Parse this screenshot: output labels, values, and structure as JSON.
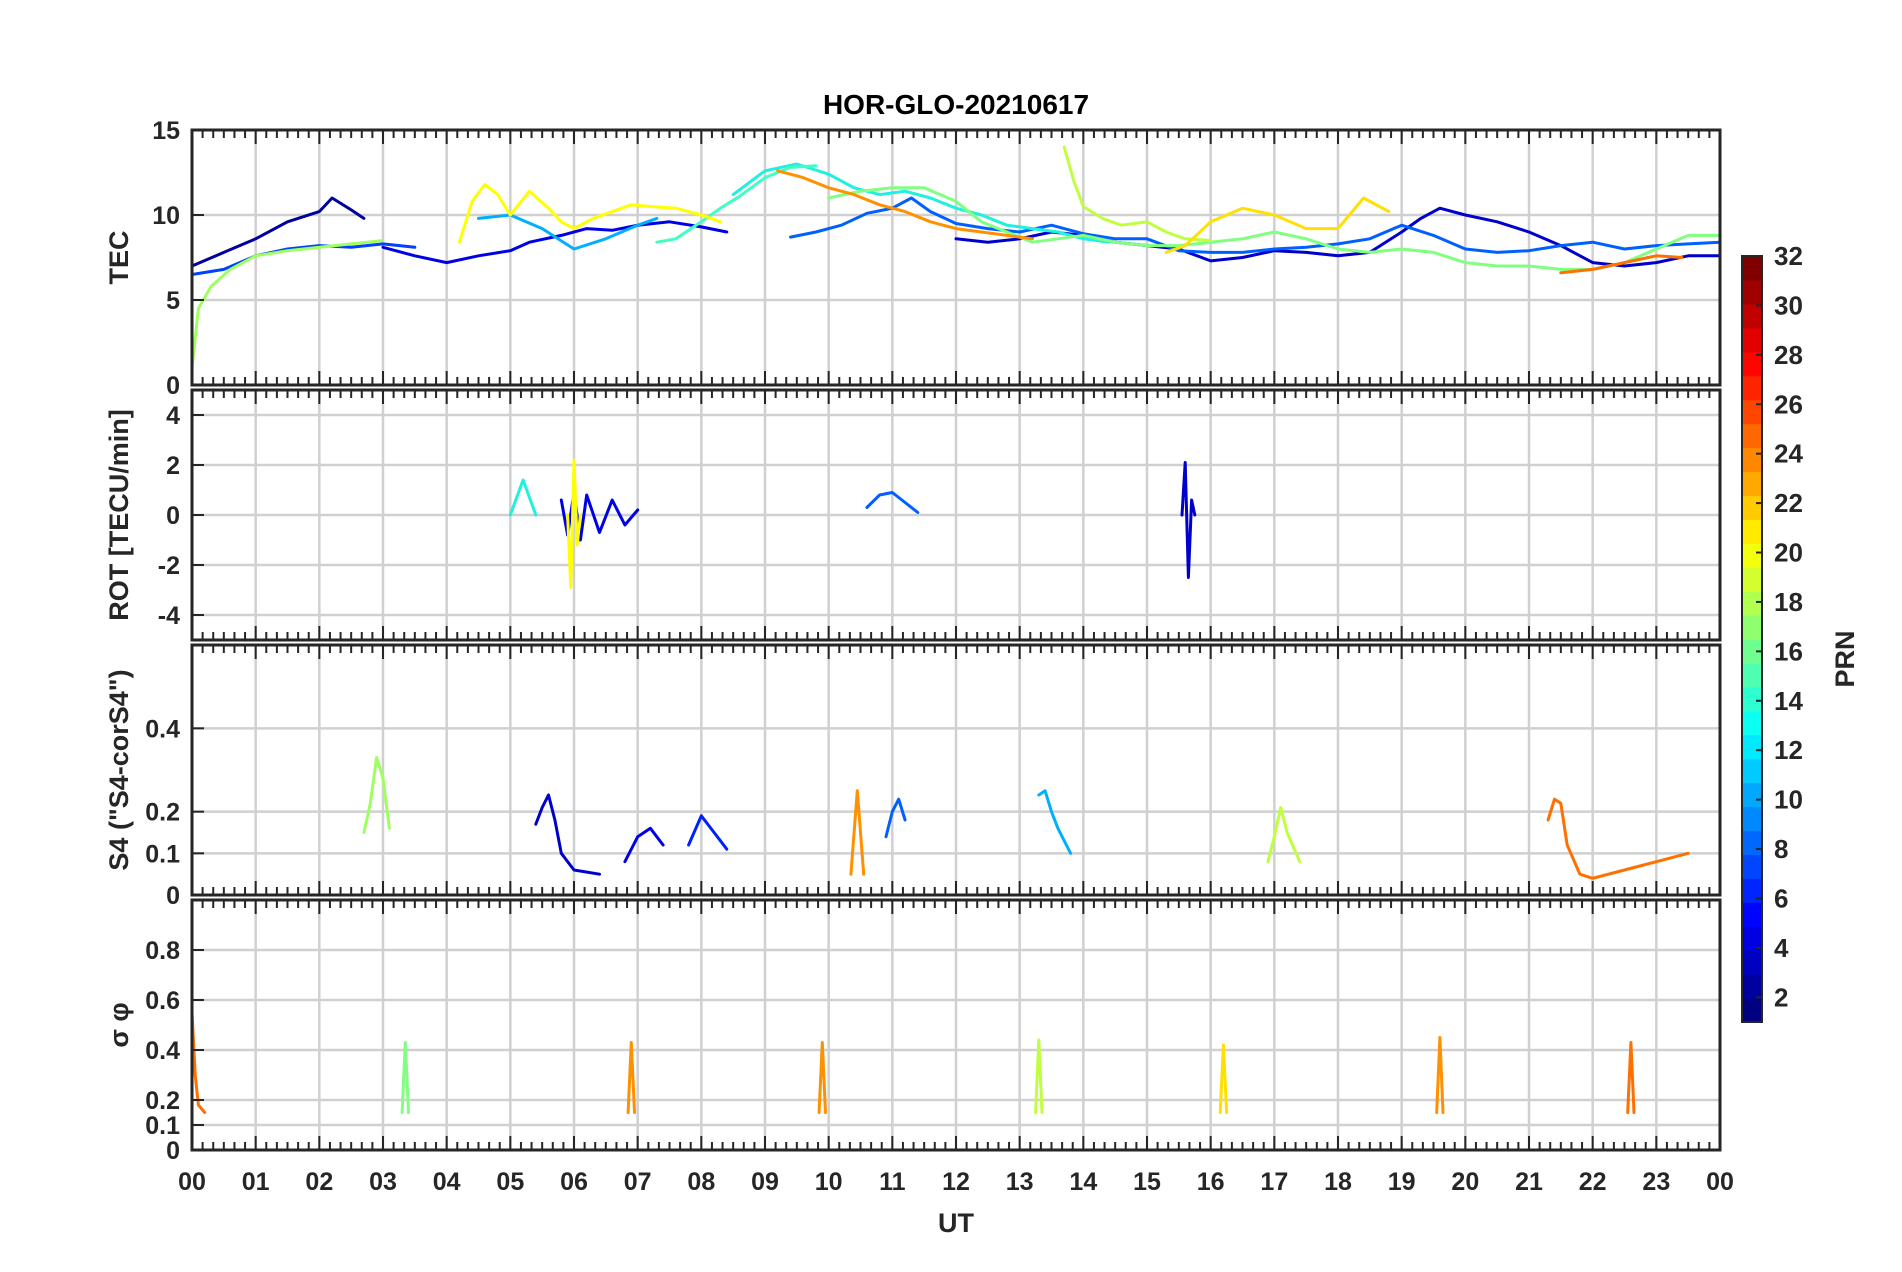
{
  "chart_data": {
    "type": "line",
    "title": "HOR-GLO-20210617",
    "xlabel": "UT",
    "x_tick_labels": [
      "00",
      "01",
      "02",
      "03",
      "04",
      "05",
      "06",
      "07",
      "08",
      "09",
      "10",
      "11",
      "12",
      "13",
      "14",
      "15",
      "16",
      "17",
      "18",
      "19",
      "20",
      "21",
      "22",
      "23",
      "00"
    ],
    "xlim": [
      0,
      24
    ],
    "grid": true,
    "panels": [
      {
        "ylabel": "TEC",
        "ylim": [
          0,
          15
        ],
        "yticks": [
          0,
          5,
          10,
          15
        ],
        "series": [
          {
            "prn": 2,
            "color": "#00009c",
            "x": [
              0.0,
              0.5,
              1.0,
              1.5,
              2.0,
              2.2,
              2.5,
              2.7
            ],
            "y": [
              7.0,
              7.8,
              8.6,
              9.6,
              10.2,
              11.0,
              10.3,
              9.8
            ]
          },
          {
            "prn": 4,
            "color": "#0000e6",
            "x": [
              3.0,
              3.5,
              4.0,
              4.5,
              5.0,
              5.3,
              5.8,
              6.2,
              6.6,
              7.0,
              7.5,
              8.0,
              8.4
            ],
            "y": [
              8.1,
              7.6,
              7.2,
              7.6,
              7.9,
              8.4,
              8.8,
              9.2,
              9.1,
              9.4,
              9.6,
              9.3,
              9.0
            ]
          },
          {
            "prn": 3,
            "color": "#0000cc",
            "x": [
              12.0,
              12.5,
              13.0,
              13.5,
              14.0,
              14.5,
              15.0,
              15.5,
              16.0,
              16.5,
              17.0,
              17.5,
              18.0,
              18.5,
              19.0,
              19.3,
              19.6,
              20.0,
              20.5,
              21.0,
              21.5,
              22.0,
              22.5,
              23.0,
              23.5,
              24.0
            ],
            "y": [
              8.6,
              8.4,
              8.6,
              9.0,
              8.8,
              8.4,
              8.2,
              8.0,
              7.3,
              7.5,
              7.9,
              7.8,
              7.6,
              7.8,
              9.0,
              9.8,
              10.4,
              10.0,
              9.6,
              9.0,
              8.2,
              7.2,
              7.0,
              7.2,
              7.6,
              7.6
            ]
          },
          {
            "prn": 7,
            "color": "#0040ff",
            "x": [
              0.0,
              0.5,
              1.0,
              1.5,
              2.0,
              2.5,
              3.0,
              3.5
            ],
            "y": [
              6.5,
              6.8,
              7.6,
              8.0,
              8.2,
              8.1,
              8.3,
              8.1
            ]
          },
          {
            "prn": 8,
            "color": "#0060ff",
            "x": [
              9.4,
              9.8,
              10.2,
              10.6,
              11.0,
              11.3,
              11.6,
              12.0,
              12.5,
              13.0,
              13.5,
              14.0,
              14.5,
              15.0,
              15.5,
              16.0,
              16.5,
              17.0,
              17.5,
              18.0,
              18.5,
              19.0,
              19.5,
              20.0,
              20.5,
              21.0,
              21.5,
              22.0,
              22.5,
              23.0,
              23.5,
              24.0
            ],
            "y": [
              8.7,
              9.0,
              9.4,
              10.1,
              10.4,
              11.0,
              10.2,
              9.5,
              9.2,
              9.0,
              9.4,
              8.9,
              8.6,
              8.6,
              7.9,
              7.8,
              7.8,
              8.0,
              8.1,
              8.3,
              8.6,
              9.4,
              8.8,
              8.0,
              7.8,
              7.9,
              8.2,
              8.4,
              8.0,
              8.2,
              8.3,
              8.4
            ]
          },
          {
            "prn": 11,
            "color": "#00b0ff",
            "x": [
              4.5,
              5.0,
              5.5,
              6.0,
              6.5,
              7.0,
              7.3
            ],
            "y": [
              9.8,
              10.0,
              9.2,
              8.0,
              8.6,
              9.4,
              9.8
            ]
          },
          {
            "prn": 13,
            "color": "#20f0e0",
            "x": [
              8.5,
              9.0,
              9.5,
              10.0,
              10.4,
              10.8,
              11.2,
              11.6,
              12.0,
              12.4,
              12.8,
              13.2,
              13.6,
              14.0,
              14.4
            ],
            "y": [
              11.2,
              12.6,
              13.0,
              12.4,
              11.6,
              11.2,
              11.4,
              11.0,
              10.4,
              10.0,
              9.4,
              9.2,
              9.0,
              8.6,
              8.4
            ]
          },
          {
            "prn": 14,
            "color": "#40ffc0",
            "x": [
              7.3,
              7.6,
              8.0,
              8.3,
              8.6,
              9.0,
              9.4,
              9.8
            ],
            "y": [
              8.4,
              8.6,
              9.6,
              10.4,
              11.1,
              12.2,
              12.8,
              12.9
            ]
          },
          {
            "prn": 16,
            "color": "#80ff80",
            "x": [
              10.0,
              10.5,
              11.0,
              11.5,
              12.0,
              12.4,
              12.8,
              13.2,
              13.6,
              14.0,
              14.5,
              15.0,
              15.5,
              16.0,
              16.5,
              17.0,
              17.5,
              18.0,
              18.5,
              19.0,
              19.5,
              20.0,
              20.5,
              21.0,
              21.5,
              22.0,
              22.5,
              23.0,
              23.5,
              24.0
            ],
            "y": [
              11.0,
              11.4,
              11.6,
              11.6,
              10.8,
              9.6,
              9.0,
              8.4,
              8.6,
              8.8,
              8.4,
              8.2,
              8.2,
              8.4,
              8.6,
              9.0,
              8.6,
              8.0,
              7.8,
              8.0,
              7.8,
              7.2,
              7.0,
              7.0,
              6.8,
              6.8,
              7.2,
              8.0,
              8.8,
              8.8
            ]
          },
          {
            "prn": 17,
            "color": "#a0ff60",
            "x": [
              0.0,
              0.1,
              0.3,
              0.6,
              1.0,
              1.5,
              2.0,
              2.5,
              3.0
            ],
            "y": [
              1.0,
              4.5,
              5.8,
              6.8,
              7.6,
              7.9,
              8.1,
              8.3,
              8.5
            ]
          },
          {
            "prn": 18,
            "color": "#c0ff40",
            "x": [
              13.7,
              13.85,
              14.0,
              14.3,
              14.6,
              15.0,
              15.3,
              15.6,
              16.0
            ],
            "y": [
              14.0,
              12.0,
              10.5,
              9.8,
              9.4,
              9.6,
              9.0,
              8.6,
              8.5
            ]
          },
          {
            "prn": 20,
            "color": "#ffff00",
            "x": [
              4.2,
              4.4,
              4.6,
              4.8,
              5.0,
              5.3,
              5.6,
              5.8,
              6.0,
              6.3,
              6.6,
              6.9,
              7.2,
              7.6,
              8.0,
              8.3
            ],
            "y": [
              8.4,
              10.8,
              11.8,
              11.2,
              10.0,
              11.4,
              10.4,
              9.6,
              9.2,
              9.8,
              10.2,
              10.6,
              10.5,
              10.4,
              10.0,
              9.6
            ]
          },
          {
            "prn": 21,
            "color": "#ffe000",
            "x": [
              15.3,
              15.6,
              16.0,
              16.5,
              17.0,
              17.5,
              18.0,
              18.4,
              18.8
            ],
            "y": [
              7.8,
              8.2,
              9.6,
              10.4,
              10.0,
              9.2,
              9.2,
              11.0,
              10.2
            ]
          },
          {
            "prn": 23,
            "color": "#ff9000",
            "x": [
              9.2,
              9.6,
              10.0,
              10.4,
              10.8,
              11.2,
              11.6,
              12.0,
              12.4,
              12.8,
              13.2
            ],
            "y": [
              12.6,
              12.2,
              11.6,
              11.2,
              10.6,
              10.2,
              9.6,
              9.2,
              9.0,
              8.8,
              8.6
            ]
          },
          {
            "prn": 24,
            "color": "#ff7000",
            "x": [
              21.5,
              22.0,
              22.5,
              23.0,
              23.4
            ],
            "y": [
              6.6,
              6.8,
              7.2,
              7.6,
              7.5
            ]
          }
        ]
      },
      {
        "ylabel": "ROT [TECU/min]",
        "ylim": [
          -5,
          5
        ],
        "yticks": [
          -4,
          -2,
          0,
          2,
          4
        ],
        "series": [
          {
            "prn": 4,
            "color": "#0000e6",
            "x": [
              5.8,
              5.9,
              6.0,
              6.1,
              6.2,
              6.4,
              6.6,
              6.8,
              7.0
            ],
            "y": [
              0.6,
              -0.8,
              0.9,
              -1.0,
              0.8,
              -0.7,
              0.6,
              -0.4,
              0.2
            ]
          },
          {
            "prn": 3,
            "color": "#0000cc",
            "x": [
              15.55,
              15.6,
              15.65,
              15.7,
              15.75
            ],
            "y": [
              0.0,
              2.1,
              -2.5,
              0.6,
              0.0
            ]
          },
          {
            "prn": 20,
            "color": "#ffff00",
            "x": [
              5.9,
              5.95,
              6.0,
              6.05,
              6.1
            ],
            "y": [
              0.0,
              -2.9,
              2.2,
              -1.2,
              0.0
            ]
          },
          {
            "prn": 8,
            "color": "#0060ff",
            "x": [
              10.6,
              10.8,
              11.0,
              11.2,
              11.4
            ],
            "y": [
              0.3,
              0.8,
              0.9,
              0.5,
              0.1
            ]
          },
          {
            "prn": 13,
            "color": "#20f0e0",
            "x": [
              5.0,
              5.2,
              5.4
            ],
            "y": [
              0.0,
              1.4,
              0.0
            ]
          }
        ]
      },
      {
        "ylabel": "S4 (\"S4-corS4\")",
        "ylim": [
          0,
          0.6
        ],
        "yticks": [
          0,
          0.1,
          0.2,
          0.4
        ],
        "series": [
          {
            "prn": 3,
            "color": "#0000cc",
            "x": [
              5.4,
              5.5,
              5.6,
              5.7,
              5.8,
              6.0,
              6.4
            ],
            "y": [
              0.17,
              0.21,
              0.24,
              0.18,
              0.1,
              0.06,
              0.05
            ]
          },
          {
            "prn": 4,
            "color": "#0000e6",
            "x": [
              6.8,
              7.0,
              7.2,
              7.4
            ],
            "y": [
              0.08,
              0.14,
              0.16,
              0.12
            ]
          },
          {
            "prn": 5,
            "color": "#0020ff",
            "x": [
              7.8,
              8.0,
              8.2,
              8.4
            ],
            "y": [
              0.12,
              0.19,
              0.15,
              0.11
            ]
          },
          {
            "prn": 8,
            "color": "#0060ff",
            "x": [
              10.9,
              11.0,
              11.1,
              11.2
            ],
            "y": [
              0.14,
              0.2,
              0.23,
              0.18
            ]
          },
          {
            "prn": 11,
            "color": "#00b0ff",
            "x": [
              13.3,
              13.4,
              13.5,
              13.6,
              13.8
            ],
            "y": [
              0.24,
              0.25,
              0.2,
              0.16,
              0.1
            ]
          },
          {
            "prn": 17,
            "color": "#a0ff60",
            "x": [
              2.7,
              2.8,
              2.9,
              3.0,
              3.1
            ],
            "y": [
              0.15,
              0.22,
              0.33,
              0.28,
              0.16
            ]
          },
          {
            "prn": 18,
            "color": "#c0ff40",
            "x": [
              16.9,
              17.0,
              17.1,
              17.2,
              17.4
            ],
            "y": [
              0.08,
              0.14,
              0.21,
              0.15,
              0.08
            ]
          },
          {
            "prn": 23,
            "color": "#ff9000",
            "x": [
              10.35,
              10.45,
              10.55
            ],
            "y": [
              0.05,
              0.25,
              0.05
            ]
          },
          {
            "prn": 24,
            "color": "#ff7000",
            "x": [
              21.3,
              21.4,
              21.5,
              21.6,
              21.8,
              22.0,
              22.5,
              23.0,
              23.5
            ],
            "y": [
              0.18,
              0.23,
              0.22,
              0.12,
              0.05,
              0.04,
              0.06,
              0.08,
              0.1
            ]
          }
        ]
      },
      {
        "ylabel": "σ φ",
        "ylim": [
          0,
          1
        ],
        "yticks": [
          0,
          0.1,
          0.2,
          0.4,
          0.6,
          0.8
        ],
        "series": [
          {
            "prn": 24,
            "color": "#ff7000",
            "x": [
              0.0,
              0.05,
              0.1,
              0.2
            ],
            "y": [
              0.55,
              0.3,
              0.18,
              0.15
            ]
          },
          {
            "prn": 16,
            "color": "#80ff80",
            "x": [
              3.3,
              3.35,
              3.4
            ],
            "y": [
              0.15,
              0.43,
              0.15
            ]
          },
          {
            "prn": 23,
            "color": "#ff9000",
            "x": [
              6.85,
              6.9,
              6.95
            ],
            "y": [
              0.15,
              0.43,
              0.15
            ]
          },
          {
            "prn": 23,
            "color": "#ff9000",
            "x": [
              9.85,
              9.9,
              9.95
            ],
            "y": [
              0.15,
              0.43,
              0.15
            ]
          },
          {
            "prn": 18,
            "color": "#c0ff40",
            "x": [
              13.25,
              13.3,
              13.35
            ],
            "y": [
              0.15,
              0.44,
              0.15
            ]
          },
          {
            "prn": 21,
            "color": "#ffe000",
            "x": [
              16.15,
              16.2,
              16.25
            ],
            "y": [
              0.15,
              0.42,
              0.15
            ]
          },
          {
            "prn": 23,
            "color": "#ff9000",
            "x": [
              19.55,
              19.6,
              19.65
            ],
            "y": [
              0.15,
              0.45,
              0.15
            ]
          },
          {
            "prn": 24,
            "color": "#ff7000",
            "x": [
              22.55,
              22.6,
              22.65
            ],
            "y": [
              0.15,
              0.43,
              0.15
            ]
          }
        ]
      }
    ],
    "colorbar": {
      "label": "PRN",
      "range": [
        1,
        32
      ],
      "ticks": [
        2,
        4,
        6,
        8,
        10,
        12,
        14,
        16,
        18,
        20,
        22,
        24,
        26,
        28,
        30,
        32
      ],
      "colormap": "jet"
    }
  }
}
